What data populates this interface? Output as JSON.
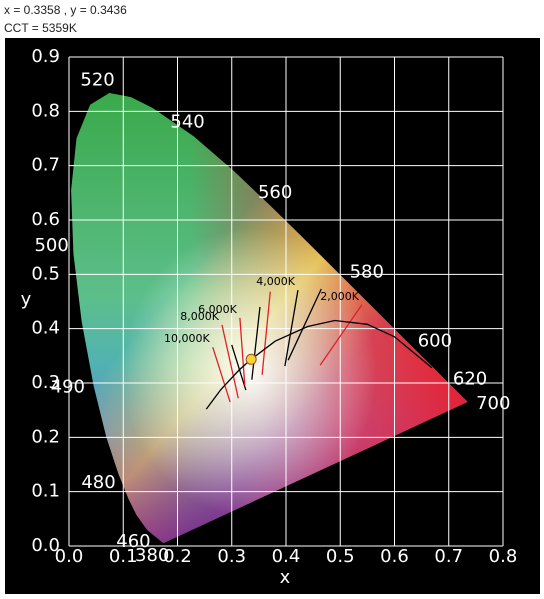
{
  "readout": "x = 0.3358 , y = 0.3436",
  "cct": "CCT = 5359K",
  "chart_data": {
    "type": "chromaticity",
    "xlabel": "x",
    "ylabel": "y",
    "xlim": [
      0,
      0.8
    ],
    "ylim": [
      0,
      0.9
    ],
    "xticks": [
      {
        "value": 0,
        "label": "0.0"
      },
      0.1,
      0.2,
      0.3,
      0.4,
      0.5,
      0.6,
      0.7,
      0.8
    ],
    "yticks": [
      {
        "value": 0,
        "label": "0.0"
      },
      0.1,
      0.2,
      0.3,
      0.4,
      0.5,
      0.6,
      0.7,
      0.8,
      0.9
    ],
    "grid": true,
    "grid_color": "#ffffff",
    "locus": {
      "labels": [
        "380",
        "460",
        null,
        null,
        "480",
        null,
        "490",
        null,
        "500",
        null,
        null,
        null,
        "520",
        null,
        null,
        "540",
        null,
        "560",
        null,
        "580",
        null,
        "600",
        null,
        "620",
        "700"
      ],
      "x": [
        0.1741,
        0.144,
        0.1241,
        0.1096,
        0.0913,
        0.0687,
        0.0454,
        0.0235,
        0.0082,
        0.0039,
        0.0139,
        0.0389,
        0.0743,
        0.1142,
        0.1547,
        0.2296,
        0.3016,
        0.3731,
        0.4441,
        0.5125,
        0.5752,
        0.627,
        0.6658,
        0.6915,
        0.7347
      ],
      "y": [
        0.005,
        0.0297,
        0.0578,
        0.0868,
        0.1327,
        0.2007,
        0.295,
        0.4127,
        0.5384,
        0.6548,
        0.7502,
        0.812,
        0.8338,
        0.8262,
        0.8059,
        0.7543,
        0.6923,
        0.6245,
        0.5547,
        0.4866,
        0.4242,
        0.3725,
        0.334,
        0.3083,
        0.2653
      ]
    },
    "planckian": {
      "color": "#000000",
      "x": [
        0.253,
        0.28,
        0.3135,
        0.3358,
        0.38,
        0.44,
        0.49,
        0.55,
        0.6,
        0.669
      ],
      "y": [
        0.252,
        0.288,
        0.324,
        0.3436,
        0.377,
        0.404,
        0.415,
        0.408,
        0.385,
        0.328
      ]
    },
    "isotherms": [
      {
        "label": "10,000K",
        "color": "#e0202a",
        "x1": 0.265,
        "y1": 0.366,
        "x2": 0.297,
        "y2": 0.265
      },
      {
        "label": "8,000K",
        "color": "#e0202a",
        "x1": 0.282,
        "y1": 0.407,
        "x2": 0.312,
        "y2": 0.272
      },
      {
        "label": null,
        "color": "#000000",
        "x1": 0.3,
        "y1": 0.37,
        "x2": 0.326,
        "y2": 0.287
      },
      {
        "label": "6,000K",
        "color": "#e0202a",
        "x1": 0.315,
        "y1": 0.42,
        "x2": 0.324,
        "y2": 0.296
      },
      {
        "label": null,
        "color": "#000000",
        "x1": 0.352,
        "y1": 0.44,
        "x2": 0.337,
        "y2": 0.306
      },
      {
        "label": null,
        "color": "#e0202a",
        "x1": 0.371,
        "y1": 0.468,
        "x2": 0.356,
        "y2": 0.315
      },
      {
        "label": "4,000K",
        "color": "#000000",
        "x1": 0.422,
        "y1": 0.471,
        "x2": 0.398,
        "y2": 0.331
      },
      {
        "label": null,
        "color": "#000000",
        "x1": 0.465,
        "y1": 0.473,
        "x2": 0.404,
        "y2": 0.342
      },
      {
        "label": "2,000K",
        "color": "#e0202a",
        "x1": 0.54,
        "y1": 0.444,
        "x2": 0.463,
        "y2": 0.333
      }
    ],
    "point": {
      "x": 0.3358,
      "y": 0.3436,
      "color": "#f7d33a"
    }
  }
}
